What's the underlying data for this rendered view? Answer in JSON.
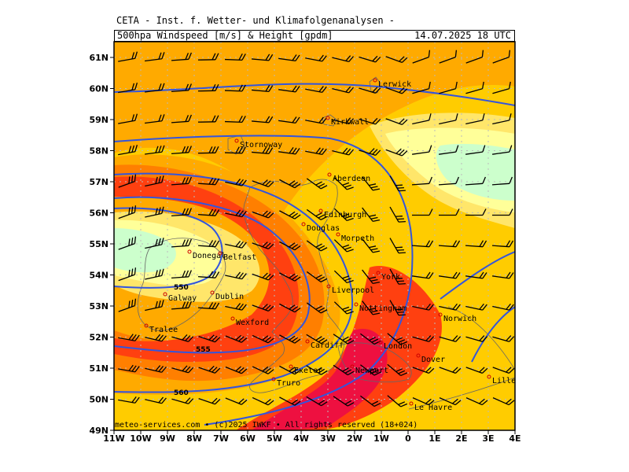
{
  "header": {
    "title": "CETA - Inst. f. Wetter- und Klimafolgenanalysen -",
    "product": "500hpa Windspeed [m/s] & Height [gpdm]",
    "datetime": "14.07.2025 18 UTC"
  },
  "axes": {
    "lat_labels": [
      "61N",
      "60N",
      "59N",
      "58N",
      "57N",
      "56N",
      "55N",
      "54N",
      "53N",
      "52N",
      "51N",
      "50N",
      "49N"
    ],
    "lon_labels": [
      "11W",
      "10W",
      "9W",
      "8W",
      "7W",
      "6W",
      "5W",
      "4W",
      "3W",
      "2W",
      "1W",
      "0",
      "1E",
      "2E",
      "3E",
      "4E"
    ]
  },
  "contour_labels": [
    "550",
    "555",
    "560"
  ],
  "cities": [
    {
      "name": "Lerwick"
    },
    {
      "name": "Kirkwall"
    },
    {
      "name": "Stornoway"
    },
    {
      "name": "Aberdeen"
    },
    {
      "name": "Edinburgh"
    },
    {
      "name": "Douglas"
    },
    {
      "name": "Morpeth"
    },
    {
      "name": "Donegal"
    },
    {
      "name": "Belfast"
    },
    {
      "name": "York"
    },
    {
      "name": "Galway"
    },
    {
      "name": "Dublin"
    },
    {
      "name": "Liverpool"
    },
    {
      "name": "Nottingham"
    },
    {
      "name": "Wexford"
    },
    {
      "name": "Norwich"
    },
    {
      "name": "Tralee"
    },
    {
      "name": "Cardiff"
    },
    {
      "name": "London"
    },
    {
      "name": "Dover"
    },
    {
      "name": "Exeter"
    },
    {
      "name": "Newport"
    },
    {
      "name": "Truro"
    },
    {
      "name": "Lille"
    },
    {
      "name": "Le Havre"
    }
  ],
  "footer": "meteo-services.com • (c)2025 IWKF • All rights reserved (18+024)",
  "colors": {
    "speed_low": "#ccffcc",
    "speed_light": "#ffff99",
    "speed_yellow": "#ffe66a",
    "speed_gold": "#ffcc00",
    "speed_orange": "#ffaa00",
    "speed_dark_orange": "#ff7f00",
    "speed_red": "#ff4010",
    "speed_crimson": "#ee1040",
    "contour": "#3355dd",
    "coast": "#666666",
    "grid": "#bbbbbb"
  }
}
